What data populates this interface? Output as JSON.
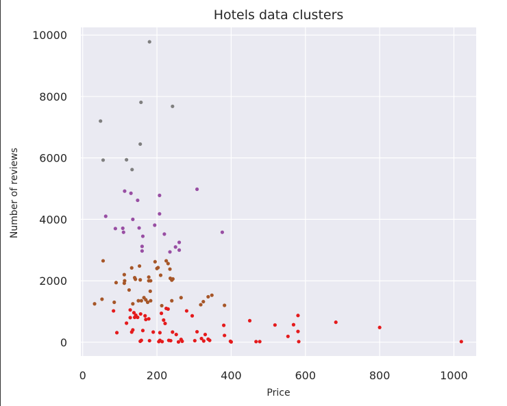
{
  "chart_data": {
    "type": "scatter",
    "title": "Hotels data clusters",
    "xlabel": "Price",
    "ylabel": "Number of reviews",
    "xlim": [
      -5,
      1060
    ],
    "ylim": [
      -450,
      10250
    ],
    "xticks": [
      0,
      200,
      400,
      600,
      800,
      1000
    ],
    "yticks": [
      0,
      2000,
      4000,
      6000,
      8000,
      10000
    ],
    "grid": true,
    "background": "#eaeaf2",
    "gridColor": "#ffffff",
    "series": [
      {
        "color": "#7f7f7f",
        "points": [
          [
            180,
            9780
          ],
          [
            157,
            7810
          ],
          [
            242,
            7680
          ],
          [
            48,
            7200
          ],
          [
            55,
            5930
          ],
          [
            155,
            6450
          ],
          [
            118,
            5940
          ],
          [
            133,
            5620
          ]
        ]
      },
      {
        "color": "#984ea3",
        "points": [
          [
            113,
            4920
          ],
          [
            130,
            4850
          ],
          [
            148,
            4620
          ],
          [
            62,
            4100
          ],
          [
            88,
            3700
          ],
          [
            108,
            3710
          ],
          [
            110,
            3580
          ],
          [
            135,
            4000
          ],
          [
            152,
            3720
          ],
          [
            162,
            3450
          ],
          [
            160,
            3120
          ],
          [
            160,
            2970
          ],
          [
            194,
            3810
          ],
          [
            207,
            4780
          ],
          [
            207,
            4180
          ],
          [
            220,
            3520
          ],
          [
            235,
            2940
          ],
          [
            250,
            3100
          ],
          [
            260,
            3250
          ],
          [
            260,
            3000
          ],
          [
            308,
            4980
          ],
          [
            376,
            3580
          ]
        ]
      },
      {
        "color": "#a65628",
        "points": [
          [
            32,
            1250
          ],
          [
            55,
            2650
          ],
          [
            52,
            1400
          ],
          [
            85,
            1300
          ],
          [
            90,
            1940
          ],
          [
            112,
            2200
          ],
          [
            113,
            2000
          ],
          [
            112,
            1920
          ],
          [
            125,
            1700
          ],
          [
            132,
            2420
          ],
          [
            135,
            1250
          ],
          [
            140,
            2100
          ],
          [
            142,
            2050
          ],
          [
            153,
            2480
          ],
          [
            155,
            2030
          ],
          [
            150,
            1350
          ],
          [
            158,
            1350
          ],
          [
            165,
            1450
          ],
          [
            170,
            1380
          ],
          [
            175,
            1300
          ],
          [
            178,
            2120
          ],
          [
            178,
            2000
          ],
          [
            182,
            1660
          ],
          [
            183,
            1350
          ],
          [
            183,
            2000
          ],
          [
            195,
            2620
          ],
          [
            200,
            2400
          ],
          [
            203,
            2430
          ],
          [
            210,
            2180
          ],
          [
            213,
            1190
          ],
          [
            225,
            2650
          ],
          [
            230,
            2560
          ],
          [
            235,
            2380
          ],
          [
            236,
            2080
          ],
          [
            240,
            2020
          ],
          [
            243,
            2060
          ],
          [
            265,
            1450
          ],
          [
            240,
            1350
          ],
          [
            318,
            1220
          ],
          [
            325,
            1320
          ],
          [
            338,
            1480
          ],
          [
            348,
            1530
          ],
          [
            382,
            1200
          ]
        ]
      },
      {
        "color": "#e41a1c",
        "points": [
          [
            83,
            1020
          ],
          [
            92,
            310
          ],
          [
            118,
            620
          ],
          [
            128,
            1050
          ],
          [
            128,
            800
          ],
          [
            132,
            330
          ],
          [
            135,
            400
          ],
          [
            138,
            960
          ],
          [
            140,
            810
          ],
          [
            143,
            880
          ],
          [
            148,
            810
          ],
          [
            155,
            30
          ],
          [
            156,
            920
          ],
          [
            158,
            60
          ],
          [
            162,
            380
          ],
          [
            168,
            860
          ],
          [
            170,
            740
          ],
          [
            178,
            760
          ],
          [
            180,
            50
          ],
          [
            190,
            330
          ],
          [
            205,
            20
          ],
          [
            208,
            310
          ],
          [
            208,
            60
          ],
          [
            212,
            940
          ],
          [
            214,
            20
          ],
          [
            218,
            720
          ],
          [
            222,
            610
          ],
          [
            225,
            1100
          ],
          [
            230,
            1080
          ],
          [
            232,
            60
          ],
          [
            237,
            50
          ],
          [
            242,
            330
          ],
          [
            252,
            250
          ],
          [
            258,
            10
          ],
          [
            265,
            90
          ],
          [
            268,
            30
          ],
          [
            280,
            1020
          ],
          [
            295,
            860
          ],
          [
            302,
            50
          ],
          [
            308,
            340
          ],
          [
            320,
            120
          ],
          [
            326,
            40
          ],
          [
            330,
            250
          ],
          [
            338,
            100
          ],
          [
            342,
            60
          ],
          [
            380,
            550
          ],
          [
            382,
            220
          ],
          [
            398,
            30
          ],
          [
            400,
            10
          ],
          [
            450,
            700
          ],
          [
            467,
            20
          ],
          [
            477,
            20
          ],
          [
            518,
            560
          ],
          [
            553,
            190
          ],
          [
            568,
            570
          ],
          [
            580,
            350
          ],
          [
            580,
            870
          ],
          [
            582,
            20
          ],
          [
            682,
            650
          ],
          [
            800,
            480
          ],
          [
            1020,
            20
          ]
        ]
      }
    ]
  }
}
